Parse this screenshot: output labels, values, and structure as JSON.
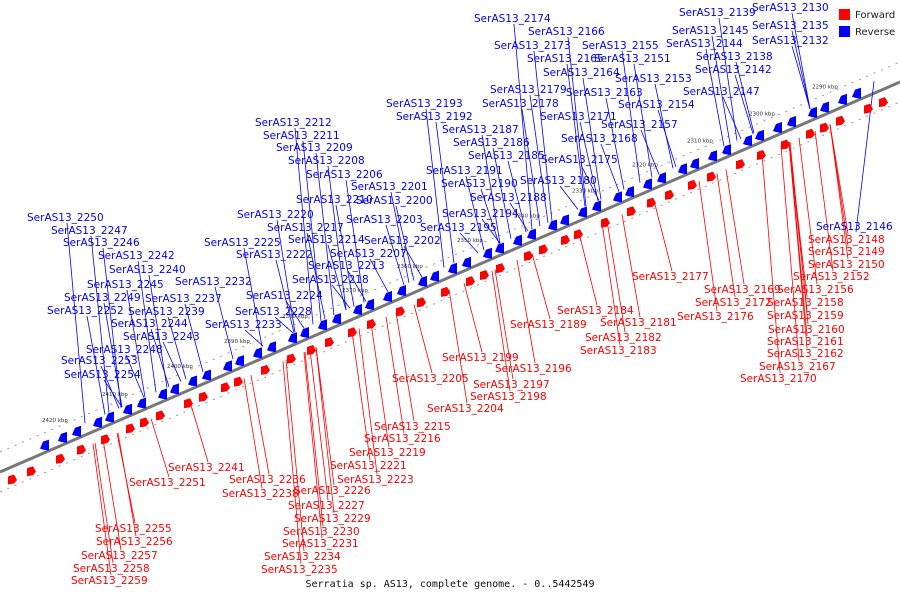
{
  "caption": "Serratia sp. AS13, complete genome. - 0..5442549",
  "legend": [
    {
      "label": "Forward",
      "color": "#ff0000"
    },
    {
      "label": "Reverse",
      "color": "#0000ff"
    }
  ],
  "colors": {
    "forward": "#ff0000",
    "reverse": "#0000ff",
    "backbone": "#777777"
  },
  "kbp_labels": [
    "2290 kbp",
    "2300 kbp",
    "2310 kbp",
    "2320 kbp",
    "2330 kbp",
    "2340 kbp",
    "2350 kbp",
    "2360 kbp",
    "2370 kbp",
    "2380 kbp",
    "2390 kbp",
    "2400 kbp",
    "2410 kbp",
    "2420 kbp"
  ],
  "reverse_labels": [
    "SerAS13_2130",
    "SerAS13_2135",
    "SerAS13_2139",
    "SerAS13_2145",
    "SerAS13_2132",
    "SerAS13_2138",
    "SerAS13_2144",
    "SerAS13_2142",
    "SerAS13_2147",
    "SerAS13_2174",
    "SerAS13_2166",
    "SerAS13_2173",
    "SerAS13_2155",
    "SerAS13_2165",
    "SerAS13_2151",
    "SerAS13_2164",
    "SerAS13_2153",
    "SerAS13_2179",
    "SerAS13_2163",
    "SerAS13_2178",
    "SerAS13_2154",
    "SerAS13_2171",
    "SerAS13_2157",
    "SerAS13_2168",
    "SerAS13_2175",
    "SerAS13_2180",
    "SerAS13_2193",
    "SerAS13_2192",
    "SerAS13_2187",
    "SerAS13_2186",
    "SerAS13_2185",
    "SerAS13_2191",
    "SerAS13_2190",
    "SerAS13_2188",
    "SerAS13_2194",
    "SerAS13_2195",
    "SerAS13_2212",
    "SerAS13_2211",
    "SerAS13_2209",
    "SerAS13_2208",
    "SerAS13_2206",
    "SerAS13_2201",
    "SerAS13_2210",
    "SerAS13_2200",
    "SerAS13_2220",
    "SerAS13_2203",
    "SerAS13_2217",
    "SerAS13_2214",
    "SerAS13_2202",
    "SerAS13_2225",
    "SerAS13_2222",
    "SerAS13_2207",
    "SerAS13_2213",
    "SerAS13_2218",
    "SerAS13_2232",
    "SerAS13_2224",
    "SerAS13_2228",
    "SerAS13_2233",
    "SerAS13_2250",
    "SerAS13_2247",
    "SerAS13_2246",
    "SerAS13_2242",
    "SerAS13_2240",
    "SerAS13_2245",
    "SerAS13_2237",
    "SerAS13_2249",
    "SerAS13_2252",
    "SerAS13_2239",
    "SerAS13_2244",
    "SerAS13_2243",
    "SerAS13_2248",
    "SerAS13_2253",
    "SerAS13_2254",
    "SerAS13_2146"
  ],
  "forward_labels": [
    "SerAS13_2148",
    "SerAS13_2149",
    "SerAS13_2150",
    "SerAS13_2152",
    "SerAS13_2177",
    "SerAS13_2169",
    "SerAS13_2156",
    "SerAS13_2172",
    "SerAS13_2158",
    "SerAS13_2176",
    "SerAS13_2159",
    "SerAS13_2160",
    "SerAS13_2161",
    "SerAS13_2162",
    "SerAS13_2167",
    "SerAS13_2170",
    "SerAS13_2184",
    "SerAS13_2189",
    "SerAS13_2181",
    "SerAS13_2182",
    "SerAS13_2183",
    "SerAS13_2199",
    "SerAS13_2196",
    "SerAS13_2197",
    "SerAS13_2198",
    "SerAS13_2205",
    "SerAS13_2204",
    "SerAS13_2215",
    "SerAS13_2216",
    "SerAS13_2219",
    "SerAS13_2221",
    "SerAS13_2223",
    "SerAS13_2241",
    "SerAS13_2251",
    "SerAS13_2236",
    "SerAS13_2238",
    "SerAS13_2226",
    "SerAS13_2227",
    "SerAS13_2229",
    "SerAS13_2230",
    "SerAS13_2231",
    "SerAS13_2234",
    "SerAS13_2235",
    "SerAS13_2255",
    "SerAS13_2256",
    "SerAS13_2257",
    "SerAS13_2258",
    "SerAS13_2259"
  ]
}
